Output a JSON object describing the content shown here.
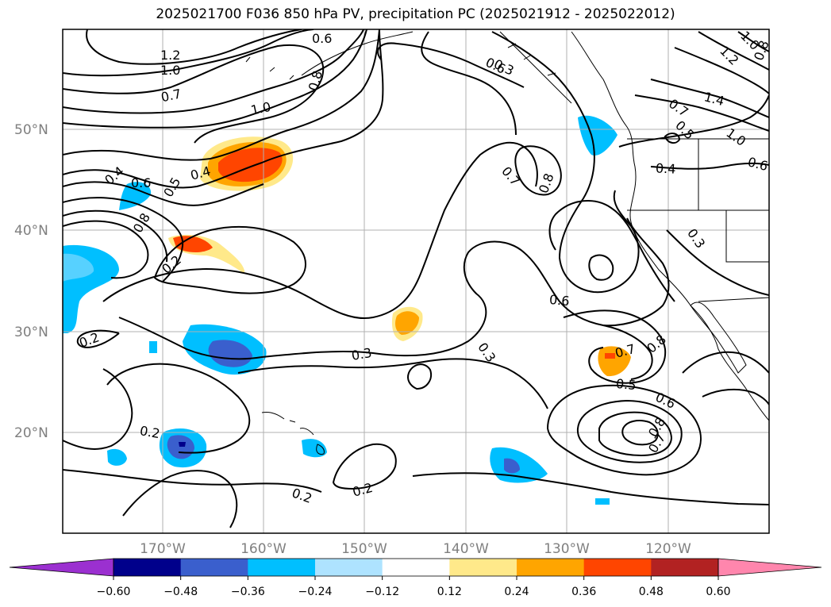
{
  "title": "2025021700 F036 850 hPa PV, precipitation PC (2025021912 - 2025022012)",
  "axes": {
    "lat_labels": [
      "50°N",
      "40°N",
      "30°N",
      "20°N"
    ],
    "lon_labels": [
      "170°W",
      "160°W",
      "150°W",
      "140°W",
      "130°W",
      "120°W"
    ]
  },
  "colorbar": {
    "ticks": [
      "−0.60",
      "−0.48",
      "−0.36",
      "−0.24",
      "−0.12",
      "0.12",
      "0.24",
      "0.36",
      "0.48",
      "0.60"
    ],
    "colors": [
      "#9b30d0",
      "#00008b",
      "#3a5fcd",
      "#00bfff",
      "#aee3ff",
      "#ffffff",
      "#ffe98a",
      "#ffa500",
      "#ff4500",
      "#b22222",
      "#ff86ad"
    ]
  },
  "contour_labels": [
    {
      "text": "1.2"
    },
    {
      "text": "1.0"
    },
    {
      "text": "0.6"
    },
    {
      "text": "0.8"
    },
    {
      "text": "1.0"
    },
    {
      "text": "0.7"
    },
    {
      "text": "0.4"
    },
    {
      "text": "0.6"
    },
    {
      "text": "0.5"
    },
    {
      "text": "0.8"
    },
    {
      "text": "0.4"
    },
    {
      "text": "0.2"
    },
    {
      "text": "0.2"
    },
    {
      "text": "0.3"
    },
    {
      "text": "0.3"
    },
    {
      "text": "0.2"
    },
    {
      "text": "0.2"
    },
    {
      "text": "0.2"
    },
    {
      "text": "0.6"
    },
    {
      "text": "0.3"
    },
    {
      "text": "0.7"
    },
    {
      "text": "0.8"
    },
    {
      "text": "1.4"
    },
    {
      "text": "1.2"
    },
    {
      "text": "1.0"
    },
    {
      "text": "0.8"
    },
    {
      "text": "0.7"
    },
    {
      "text": "0.5"
    },
    {
      "text": "1.0"
    },
    {
      "text": "0.6"
    },
    {
      "text": "0.4"
    },
    {
      "text": "0.3"
    },
    {
      "text": "0.6"
    },
    {
      "text": "0.7"
    },
    {
      "text": "0.8"
    },
    {
      "text": "0.5"
    },
    {
      "text": "0.6"
    },
    {
      "text": "0.8"
    },
    {
      "text": "0.7"
    }
  ]
}
